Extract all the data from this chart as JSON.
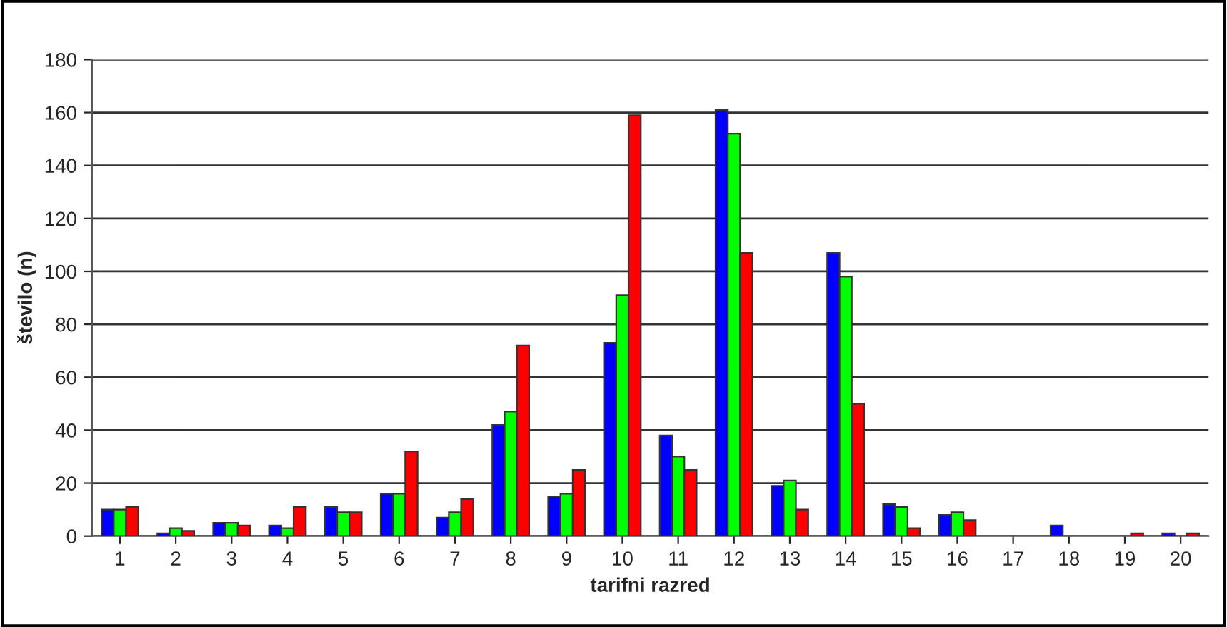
{
  "chart_data": {
    "type": "bar",
    "xlabel": "tarifni razred",
    "ylabel": "število (n)",
    "categories": [
      "1",
      "2",
      "3",
      "4",
      "5",
      "6",
      "7",
      "8",
      "9",
      "10",
      "11",
      "12",
      "13",
      "14",
      "15",
      "16",
      "17",
      "18",
      "19",
      "20"
    ],
    "series": [
      {
        "color": "#0000ff",
        "values": [
          10,
          1,
          5,
          4,
          11,
          16,
          7,
          42,
          15,
          73,
          38,
          161,
          19,
          107,
          12,
          8,
          0,
          4,
          0,
          1
        ]
      },
      {
        "color": "#00ff00",
        "values": [
          10,
          3,
          5,
          3,
          9,
          16,
          9,
          47,
          16,
          91,
          30,
          152,
          21,
          98,
          11,
          9,
          0,
          0,
          0,
          0
        ]
      },
      {
        "color": "#ff0000",
        "values": [
          11,
          2,
          4,
          11,
          9,
          32,
          14,
          72,
          25,
          159,
          25,
          107,
          10,
          50,
          3,
          6,
          0,
          0,
          1,
          1
        ]
      }
    ],
    "ylim": [
      0,
      180
    ],
    "yticks": [
      0,
      20,
      40,
      60,
      80,
      100,
      120,
      140,
      160,
      180
    ],
    "grid": "y"
  }
}
